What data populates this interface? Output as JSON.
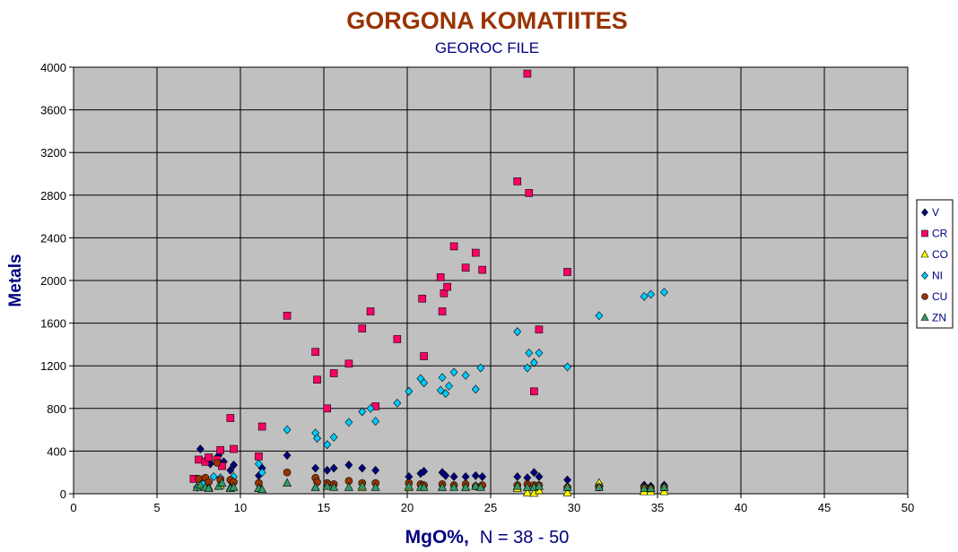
{
  "chart_data": {
    "type": "scatter",
    "title": "GORGONA KOMATIITES",
    "subtitle": "GEOROC FILE",
    "xlabel": "MgO%,",
    "xlabel_note": "N = 38 - 50",
    "ylabel": "Metals",
    "xlim": [
      0,
      50
    ],
    "ylim": [
      0,
      4000
    ],
    "x_ticks": [
      0,
      5,
      10,
      15,
      20,
      25,
      30,
      35,
      40,
      45,
      50
    ],
    "y_ticks": [
      0,
      400,
      800,
      1200,
      1600,
      2000,
      2400,
      2800,
      3200,
      3600,
      4000
    ],
    "grid": true,
    "plot_background": "#c0c0c0",
    "legend_position": "right",
    "series": [
      {
        "name": "V",
        "marker": "diamond",
        "color": "#000080",
        "points": [
          [
            7.6,
            420
          ],
          [
            7.9,
            310
          ],
          [
            8.2,
            280
          ],
          [
            8.7,
            360
          ],
          [
            9.0,
            300
          ],
          [
            9.4,
            220
          ],
          [
            9.6,
            270
          ],
          [
            11.1,
            170
          ],
          [
            11.3,
            240
          ],
          [
            12.8,
            360
          ],
          [
            14.5,
            240
          ],
          [
            15.2,
            220
          ],
          [
            15.6,
            240
          ],
          [
            16.5,
            270
          ],
          [
            17.3,
            240
          ],
          [
            18.1,
            220
          ],
          [
            20.1,
            160
          ],
          [
            20.8,
            190
          ],
          [
            21.0,
            210
          ],
          [
            22.1,
            200
          ],
          [
            22.3,
            170
          ],
          [
            22.8,
            160
          ],
          [
            23.5,
            160
          ],
          [
            24.1,
            170
          ],
          [
            24.5,
            160
          ],
          [
            26.6,
            160
          ],
          [
            27.2,
            150
          ],
          [
            27.6,
            200
          ],
          [
            27.9,
            160
          ],
          [
            29.6,
            130
          ],
          [
            31.5,
            90
          ],
          [
            34.2,
            80
          ],
          [
            34.6,
            70
          ],
          [
            35.4,
            80
          ]
        ]
      },
      {
        "name": "CR",
        "marker": "square",
        "color": "#ff0066",
        "points": [
          [
            7.2,
            140
          ],
          [
            7.5,
            320
          ],
          [
            7.9,
            300
          ],
          [
            8.1,
            340
          ],
          [
            8.6,
            320
          ],
          [
            8.8,
            410
          ],
          [
            8.9,
            260
          ],
          [
            9.4,
            710
          ],
          [
            9.6,
            420
          ],
          [
            11.1,
            350
          ],
          [
            11.3,
            630
          ],
          [
            12.8,
            1670
          ],
          [
            14.5,
            1330
          ],
          [
            14.6,
            1070
          ],
          [
            15.2,
            800
          ],
          [
            15.6,
            1130
          ],
          [
            16.5,
            1220
          ],
          [
            17.3,
            1550
          ],
          [
            17.8,
            1710
          ],
          [
            18.1,
            820
          ],
          [
            19.4,
            1450
          ],
          [
            20.9,
            1830
          ],
          [
            21.0,
            1290
          ],
          [
            22.0,
            2030
          ],
          [
            22.1,
            1710
          ],
          [
            22.2,
            1880
          ],
          [
            22.4,
            1940
          ],
          [
            22.8,
            2320
          ],
          [
            23.5,
            2120
          ],
          [
            24.1,
            2260
          ],
          [
            24.5,
            2100
          ],
          [
            26.6,
            2930
          ],
          [
            27.2,
            3940
          ],
          [
            27.3,
            2820
          ],
          [
            27.6,
            960
          ],
          [
            27.9,
            1540
          ],
          [
            29.6,
            2080
          ]
        ]
      },
      {
        "name": "CO",
        "marker": "triangle",
        "color": "#ffff00",
        "points": [
          [
            7.6,
            70
          ],
          [
            8.1,
            60
          ],
          [
            8.8,
            80
          ],
          [
            9.4,
            60
          ],
          [
            11.1,
            50
          ],
          [
            14.5,
            60
          ],
          [
            15.2,
            70
          ],
          [
            17.3,
            60
          ],
          [
            20.1,
            60
          ],
          [
            22.1,
            60
          ],
          [
            23.5,
            60
          ],
          [
            24.1,
            70
          ],
          [
            26.6,
            50
          ],
          [
            27.2,
            10
          ],
          [
            27.6,
            5
          ],
          [
            27.9,
            30
          ],
          [
            29.6,
            10
          ],
          [
            31.5,
            100
          ],
          [
            34.2,
            20
          ],
          [
            34.6,
            20
          ],
          [
            35.4,
            20
          ]
        ]
      },
      {
        "name": "NI",
        "marker": "diamond",
        "color": "#00ccff",
        "points": [
          [
            7.4,
            60
          ],
          [
            7.8,
            100
          ],
          [
            8.4,
            160
          ],
          [
            8.8,
            150
          ],
          [
            9.4,
            120
          ],
          [
            9.6,
            160
          ],
          [
            11.1,
            280
          ],
          [
            11.3,
            200
          ],
          [
            12.8,
            600
          ],
          [
            14.5,
            570
          ],
          [
            14.6,
            520
          ],
          [
            15.2,
            460
          ],
          [
            15.6,
            530
          ],
          [
            16.5,
            670
          ],
          [
            17.3,
            770
          ],
          [
            17.8,
            800
          ],
          [
            18.1,
            680
          ],
          [
            19.4,
            850
          ],
          [
            20.1,
            960
          ],
          [
            20.8,
            1080
          ],
          [
            21.0,
            1040
          ],
          [
            22.0,
            970
          ],
          [
            22.1,
            1090
          ],
          [
            22.3,
            940
          ],
          [
            22.5,
            1010
          ],
          [
            22.8,
            1140
          ],
          [
            23.5,
            1110
          ],
          [
            24.1,
            980
          ],
          [
            24.4,
            1180
          ],
          [
            26.6,
            1520
          ],
          [
            27.2,
            1180
          ],
          [
            27.3,
            1320
          ],
          [
            27.6,
            1230
          ],
          [
            27.9,
            1320
          ],
          [
            29.6,
            1190
          ],
          [
            31.5,
            1670
          ],
          [
            34.2,
            1850
          ],
          [
            34.6,
            1870
          ],
          [
            35.4,
            1890
          ]
        ]
      },
      {
        "name": "CU",
        "marker": "circle",
        "color": "#993300",
        "points": [
          [
            7.5,
            140
          ],
          [
            7.9,
            150
          ],
          [
            8.1,
            110
          ],
          [
            8.6,
            290
          ],
          [
            8.8,
            130
          ],
          [
            9.4,
            130
          ],
          [
            9.6,
            110
          ],
          [
            11.1,
            100
          ],
          [
            12.8,
            200
          ],
          [
            14.5,
            150
          ],
          [
            14.6,
            110
          ],
          [
            15.2,
            100
          ],
          [
            15.6,
            90
          ],
          [
            16.5,
            120
          ],
          [
            17.3,
            100
          ],
          [
            18.1,
            100
          ],
          [
            20.1,
            100
          ],
          [
            20.8,
            90
          ],
          [
            21.0,
            80
          ],
          [
            22.1,
            90
          ],
          [
            22.8,
            80
          ],
          [
            23.5,
            90
          ],
          [
            24.1,
            70
          ],
          [
            24.5,
            80
          ],
          [
            26.6,
            80
          ],
          [
            27.2,
            90
          ],
          [
            27.6,
            80
          ],
          [
            27.9,
            80
          ],
          [
            29.6,
            60
          ],
          [
            31.5,
            60
          ],
          [
            34.2,
            60
          ],
          [
            34.6,
            50
          ],
          [
            35.4,
            60
          ]
        ]
      },
      {
        "name": "ZN",
        "marker": "triangle",
        "color": "#339966",
        "points": [
          [
            7.4,
            60
          ],
          [
            7.6,
            80
          ],
          [
            7.9,
            60
          ],
          [
            8.1,
            50
          ],
          [
            8.7,
            70
          ],
          [
            8.9,
            100
          ],
          [
            9.4,
            50
          ],
          [
            9.6,
            60
          ],
          [
            11.1,
            50
          ],
          [
            11.3,
            40
          ],
          [
            12.8,
            100
          ],
          [
            14.5,
            60
          ],
          [
            15.2,
            70
          ],
          [
            15.6,
            60
          ],
          [
            16.5,
            60
          ],
          [
            17.3,
            70
          ],
          [
            18.1,
            60
          ],
          [
            20.1,
            70
          ],
          [
            20.8,
            60
          ],
          [
            21.0,
            60
          ],
          [
            22.1,
            60
          ],
          [
            22.8,
            60
          ],
          [
            23.5,
            60
          ],
          [
            24.1,
            70
          ],
          [
            24.4,
            60
          ],
          [
            26.6,
            70
          ],
          [
            27.2,
            60
          ],
          [
            27.6,
            60
          ],
          [
            27.9,
            70
          ],
          [
            29.6,
            60
          ],
          [
            31.5,
            60
          ],
          [
            34.2,
            50
          ],
          [
            34.6,
            50
          ],
          [
            35.4,
            60
          ]
        ]
      }
    ]
  }
}
